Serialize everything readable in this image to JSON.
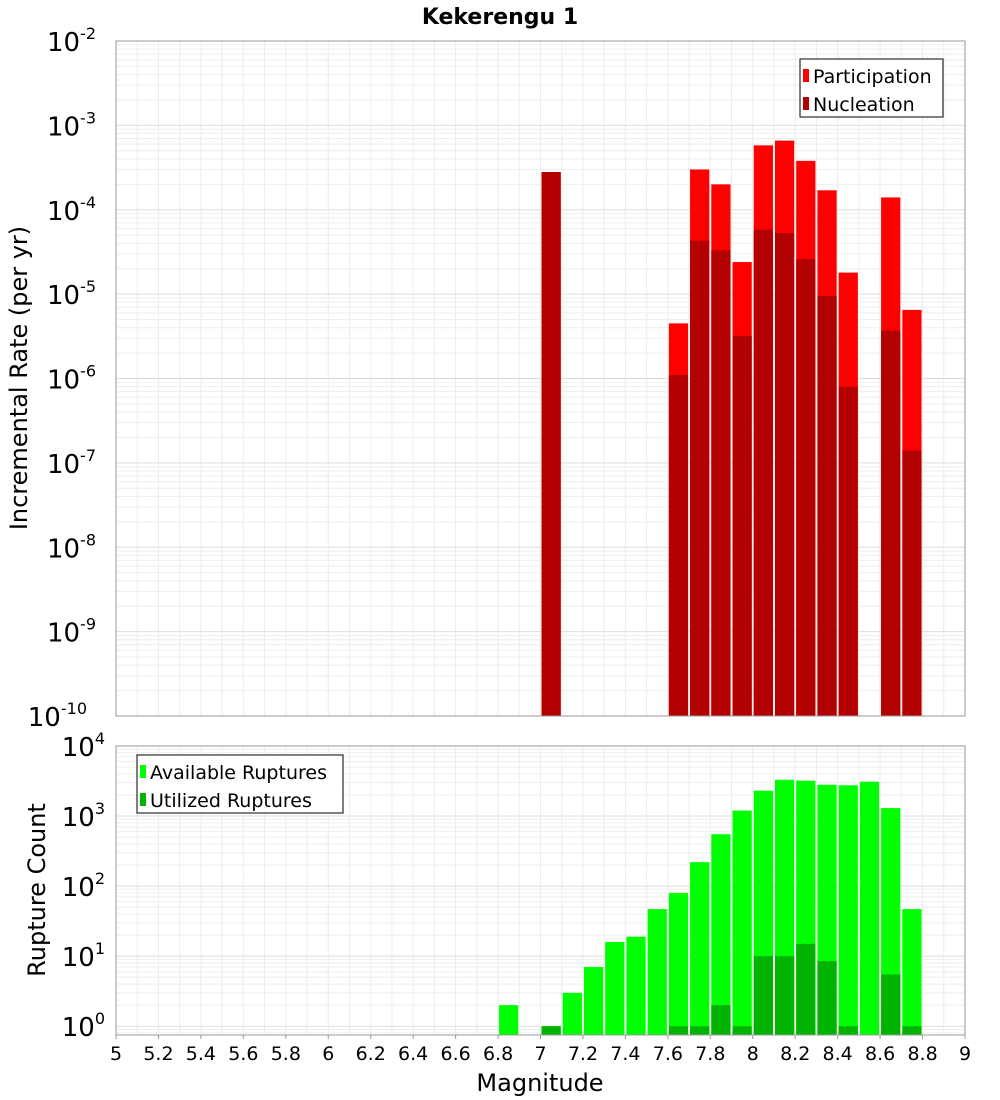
{
  "chart_data": [
    {
      "type": "bar",
      "title": "Kekerengu 1",
      "xlabel": "",
      "ylabel": "Incremental Rate (per yr)",
      "yscale": "log",
      "ylim": [
        1e-10,
        0.01
      ],
      "xlim": [
        5,
        9
      ],
      "y_tick_exponents": [
        "-10",
        "-9",
        "-8",
        "-7",
        "-6",
        "-5",
        "-4",
        "-3",
        "-2"
      ],
      "y_tick_base": "10",
      "grid": true,
      "legend_position": "top-right",
      "series": [
        {
          "name": "Participation",
          "color": "#ff0000",
          "points": [
            {
              "x": 7.05,
              "y": 0.00028
            },
            {
              "x": 7.65,
              "y": 4.5e-06
            },
            {
              "x": 7.75,
              "y": 0.0003
            },
            {
              "x": 7.85,
              "y": 0.0002
            },
            {
              "x": 7.95,
              "y": 2.4e-05
            },
            {
              "x": 8.05,
              "y": 0.00058
            },
            {
              "x": 8.15,
              "y": 0.00066
            },
            {
              "x": 8.25,
              "y": 0.00038
            },
            {
              "x": 8.35,
              "y": 0.00017
            },
            {
              "x": 8.45,
              "y": 1.8e-05
            },
            {
              "x": 8.65,
              "y": 0.00014
            },
            {
              "x": 8.75,
              "y": 6.5e-06
            }
          ]
        },
        {
          "name": "Nucleation",
          "color": "#b30000",
          "points": [
            {
              "x": 7.05,
              "y": 0.00028
            },
            {
              "x": 7.65,
              "y": 1.1e-06
            },
            {
              "x": 7.75,
              "y": 4.3e-05
            },
            {
              "x": 7.85,
              "y": 3.3e-05
            },
            {
              "x": 7.95,
              "y": 3.2e-06
            },
            {
              "x": 8.05,
              "y": 5.8e-05
            },
            {
              "x": 8.15,
              "y": 5.3e-05
            },
            {
              "x": 8.25,
              "y": 2.6e-05
            },
            {
              "x": 8.35,
              "y": 9.5e-06
            },
            {
              "x": 8.45,
              "y": 8e-07
            },
            {
              "x": 8.65,
              "y": 3.7e-06
            },
            {
              "x": 8.75,
              "y": 1.4e-07
            }
          ]
        }
      ]
    },
    {
      "type": "bar",
      "title": "",
      "xlabel": "Magnitude",
      "ylabel": "Rupture Count",
      "yscale": "log",
      "ylim": [
        0.75,
        10000
      ],
      "xlim": [
        5,
        9
      ],
      "y_tick_exponents": [
        "0",
        "1",
        "2",
        "3",
        "4"
      ],
      "y_tick_base": "10",
      "x_ticks": [
        "5",
        "5.2",
        "5.4",
        "5.6",
        "5.8",
        "6",
        "6.2",
        "6.4",
        "6.6",
        "6.8",
        "7",
        "7.2",
        "7.4",
        "7.6",
        "7.8",
        "8",
        "8.2",
        "8.4",
        "8.6",
        "8.8",
        "9"
      ],
      "grid": true,
      "legend_position": "top-left",
      "series": [
        {
          "name": "Available Ruptures",
          "color": "#00ff00",
          "points": [
            {
              "x": 6.85,
              "y": 2
            },
            {
              "x": 7.05,
              "y": 1
            },
            {
              "x": 7.15,
              "y": 3
            },
            {
              "x": 7.25,
              "y": 7
            },
            {
              "x": 7.35,
              "y": 16
            },
            {
              "x": 7.45,
              "y": 19
            },
            {
              "x": 7.55,
              "y": 47
            },
            {
              "x": 7.65,
              "y": 80
            },
            {
              "x": 7.75,
              "y": 220
            },
            {
              "x": 7.85,
              "y": 550
            },
            {
              "x": 7.95,
              "y": 1200
            },
            {
              "x": 8.05,
              "y": 2300
            },
            {
              "x": 8.15,
              "y": 3300
            },
            {
              "x": 8.25,
              "y": 3200
            },
            {
              "x": 8.35,
              "y": 2800
            },
            {
              "x": 8.45,
              "y": 2750
            },
            {
              "x": 8.55,
              "y": 3100
            },
            {
              "x": 8.65,
              "y": 1300
            },
            {
              "x": 8.75,
              "y": 47
            }
          ]
        },
        {
          "name": "Utilized Ruptures",
          "color": "#00b300",
          "points": [
            {
              "x": 7.05,
              "y": 1
            },
            {
              "x": 7.65,
              "y": 1
            },
            {
              "x": 7.75,
              "y": 1
            },
            {
              "x": 7.85,
              "y": 2
            },
            {
              "x": 7.95,
              "y": 1
            },
            {
              "x": 8.05,
              "y": 10
            },
            {
              "x": 8.15,
              "y": 10
            },
            {
              "x": 8.25,
              "y": 15
            },
            {
              "x": 8.35,
              "y": 8.5
            },
            {
              "x": 8.45,
              "y": 1
            },
            {
              "x": 8.65,
              "y": 5.5
            },
            {
              "x": 8.75,
              "y": 1
            }
          ]
        }
      ]
    }
  ]
}
